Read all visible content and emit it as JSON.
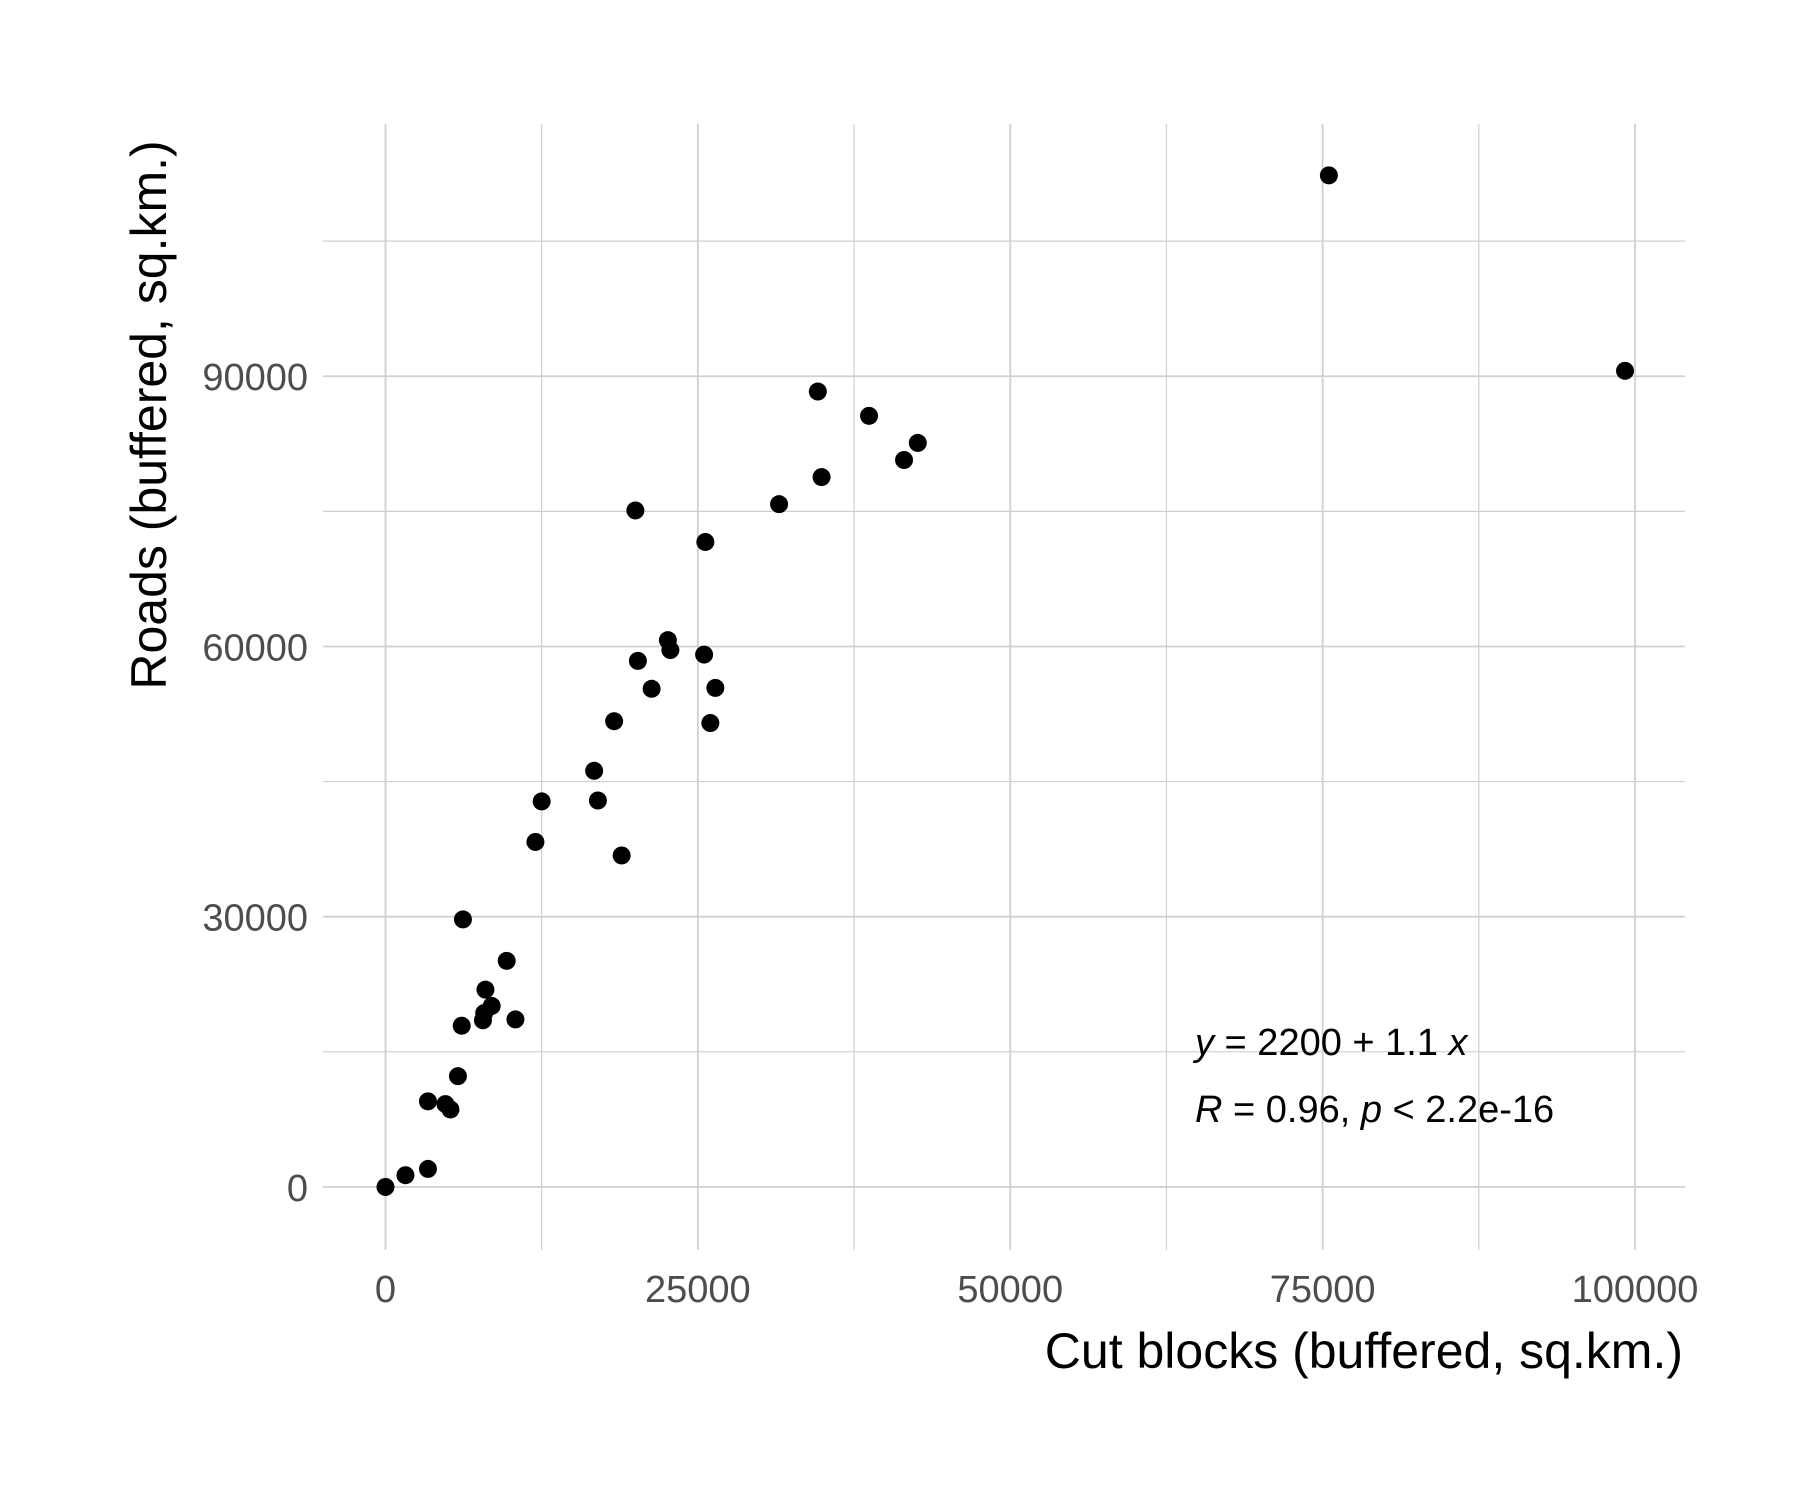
{
  "chart_data": {
    "type": "scatter",
    "xlabel": "Cut blocks (buffered, sq.km.)",
    "ylabel": "Roads (buffered, sq.km.)",
    "xlim": [
      -5000,
      104000
    ],
    "ylim": [
      -7000,
      118000
    ],
    "x_ticks": [
      0,
      25000,
      50000,
      75000,
      100000
    ],
    "x_tick_labels": [
      "0",
      "25000",
      "50000",
      "75000",
      "100000"
    ],
    "y_ticks": [
      0,
      30000,
      60000,
      90000
    ],
    "y_tick_labels": [
      "0",
      "30000",
      "60000",
      "90000"
    ],
    "grid": true,
    "point_color": "#000000",
    "grid_color": "#d0d0d0",
    "points": [
      {
        "x": 0,
        "y": 0
      },
      {
        "x": 1600,
        "y": 1300
      },
      {
        "x": 3400,
        "y": 2000
      },
      {
        "x": 3400,
        "y": 9500
      },
      {
        "x": 4800,
        "y": 9200
      },
      {
        "x": 5200,
        "y": 8600
      },
      {
        "x": 5800,
        "y": 12300
      },
      {
        "x": 6100,
        "y": 17900
      },
      {
        "x": 6200,
        "y": 29700
      },
      {
        "x": 7800,
        "y": 18500
      },
      {
        "x": 7900,
        "y": 19300
      },
      {
        "x": 8000,
        "y": 21900
      },
      {
        "x": 8500,
        "y": 20100
      },
      {
        "x": 9700,
        "y": 25100
      },
      {
        "x": 10400,
        "y": 18600
      },
      {
        "x": 12000,
        "y": 38300
      },
      {
        "x": 12500,
        "y": 42800
      },
      {
        "x": 16700,
        "y": 46200
      },
      {
        "x": 17000,
        "y": 42900
      },
      {
        "x": 18300,
        "y": 51700
      },
      {
        "x": 18900,
        "y": 36800
      },
      {
        "x": 20000,
        "y": 75100
      },
      {
        "x": 20200,
        "y": 58400
      },
      {
        "x": 21300,
        "y": 55300
      },
      {
        "x": 22600,
        "y": 60700
      },
      {
        "x": 22800,
        "y": 59600
      },
      {
        "x": 25500,
        "y": 59100
      },
      {
        "x": 25600,
        "y": 71600
      },
      {
        "x": 26000,
        "y": 51500
      },
      {
        "x": 26400,
        "y": 55400
      },
      {
        "x": 31500,
        "y": 75800
      },
      {
        "x": 34600,
        "y": 88300
      },
      {
        "x": 34900,
        "y": 78800
      },
      {
        "x": 38700,
        "y": 85600
      },
      {
        "x": 41500,
        "y": 80700
      },
      {
        "x": 42600,
        "y": 82600
      },
      {
        "x": 75500,
        "y": 112300
      },
      {
        "x": 99200,
        "y": 90600
      }
    ],
    "annotations": {
      "equation": {
        "y_var": "y",
        "rest": " = 2200 + 1.1 ",
        "x_var": "x"
      },
      "stats": {
        "r_var": "R",
        "r_text": " = 0.96, ",
        "p_var": "p",
        "p_text": " < 2.2e-16"
      }
    }
  }
}
